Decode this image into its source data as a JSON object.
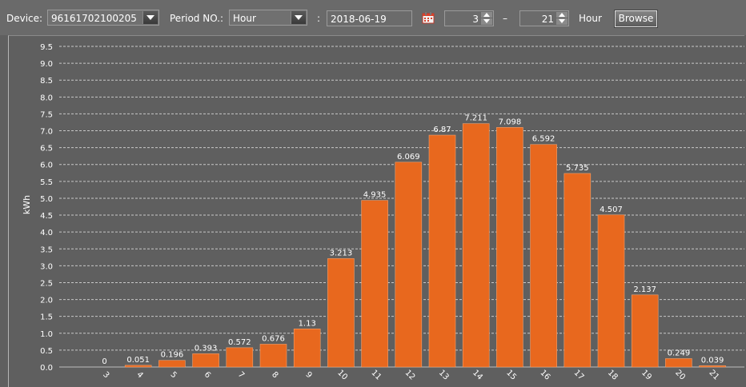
{
  "toolbar": {
    "device_label": "Device:",
    "device_value": "96161702100205",
    "period_label": "Period NO.:",
    "period_value": "Hour",
    "colon": ":",
    "date_value": "2018-06-19",
    "from_value": "3",
    "dash": "–",
    "to_value": "21",
    "unit_label": "Hour",
    "browse_label": "Browse"
  },
  "icons": {
    "calendar": "calendar-icon",
    "dropdown": "chevron-down-icon",
    "spin_up": "spin-up-icon",
    "spin_down": "spin-down-icon"
  },
  "colors": {
    "bar": "#e8681e",
    "background": "#5f5f5f",
    "grid": "#c8c8c8",
    "text": "#ffffff"
  },
  "chart_data": {
    "type": "bar",
    "ylabel": "kWh",
    "xlabel": "",
    "title": "",
    "ylim": [
      0,
      9.5
    ],
    "yticks": [
      "0.0",
      "0.5",
      "1.0",
      "1.5",
      "2.0",
      "2.5",
      "3.0",
      "3.5",
      "4.0",
      "4.5",
      "5.0",
      "5.5",
      "6.0",
      "6.5",
      "7.0",
      "7.5",
      "8.0",
      "8.5",
      "9.0",
      "9.5"
    ],
    "grid": true,
    "categories": [
      "3",
      "4",
      "5",
      "6",
      "7",
      "8",
      "9",
      "10",
      "11",
      "12",
      "13",
      "14",
      "15",
      "16",
      "17",
      "18",
      "19",
      "20",
      "21"
    ],
    "values": [
      0,
      0.051,
      0.196,
      0.393,
      0.572,
      0.676,
      1.13,
      3.213,
      4.935,
      6.069,
      6.87,
      7.211,
      7.098,
      6.592,
      5.735,
      4.507,
      2.137,
      0.249,
      0.039
    ],
    "value_labels": [
      "0",
      "0.051",
      "0.196",
      "0.393",
      "0.572",
      "0.676",
      "1.13",
      "3.213",
      "4.935",
      "6.069",
      "6.87",
      "7.211",
      "7.098",
      "6.592",
      "5.735",
      "4.507",
      "2.137",
      "0.249",
      "0.039"
    ]
  }
}
